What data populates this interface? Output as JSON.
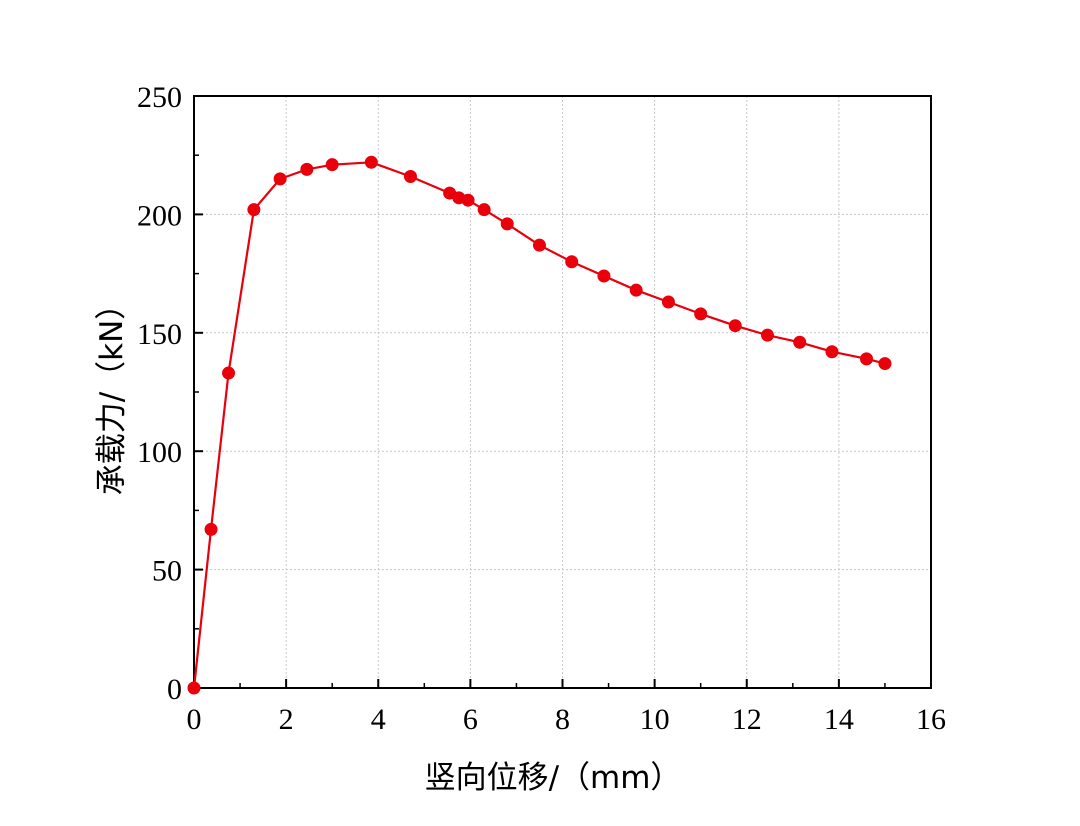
{
  "chart_data": {
    "type": "line",
    "title": "",
    "xlabel": "竖向位移/（mm）",
    "ylabel": "承载力/（kN）",
    "xlim": [
      0,
      16
    ],
    "ylim": [
      0,
      250
    ],
    "xticks": [
      "0",
      "2",
      "4",
      "6",
      "8",
      "10",
      "12",
      "14",
      "16"
    ],
    "yticks": [
      "0",
      "50",
      "100",
      "150",
      "200",
      "250"
    ],
    "grid": true,
    "marker": "circle",
    "series_color": "#e8000b",
    "series": [
      {
        "x": [
          0,
          0.37,
          0.75,
          1.3,
          1.87,
          2.45,
          3.0,
          3.85,
          4.7,
          5.55,
          5.75,
          5.95,
          6.3,
          6.8,
          7.5,
          8.2,
          8.9,
          9.6,
          10.3,
          11.0,
          11.75,
          12.45,
          13.15,
          13.85,
          14.6,
          15.0
        ],
        "y": [
          0,
          67,
          133,
          202,
          215,
          219,
          221,
          222,
          216,
          209,
          207,
          206,
          202,
          196,
          187,
          180,
          174,
          168,
          163,
          158,
          153,
          149,
          146,
          142,
          139,
          137
        ]
      }
    ]
  }
}
